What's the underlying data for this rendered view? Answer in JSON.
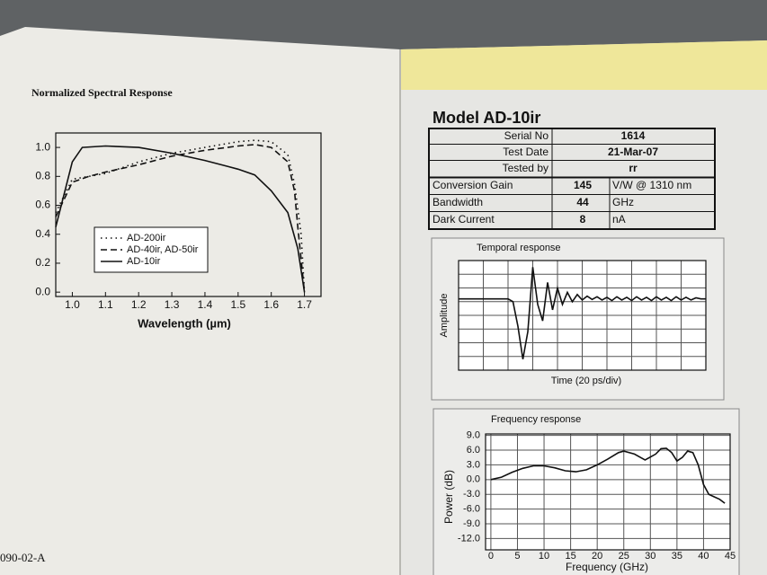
{
  "left_page": {
    "title": "Normalized Spectral Response",
    "footer": "090-02-A",
    "chart": {
      "type": "line",
      "x_label": "Wavelength (µm)",
      "xlim": [
        0.95,
        1.75
      ],
      "ylim": [
        -0.03,
        1.1
      ],
      "xticks": [
        {
          "value": 1.0,
          "label": "1.0"
        },
        1.1,
        1.2,
        1.3,
        1.4,
        1.5,
        1.6,
        1.7
      ],
      "yticks": [
        {
          "value": 0,
          "label": "0.0"
        },
        0.2,
        0.4,
        0.6,
        0.8,
        {
          "value": 1.0,
          "label": "1.0"
        }
      ],
      "series": [
        {
          "name": "AD-200ir",
          "color": "#111111",
          "style": "dotted",
          "x": [
            0.95,
            1.0,
            1.05,
            1.1,
            1.2,
            1.3,
            1.4,
            1.5,
            1.55,
            1.6,
            1.65,
            1.67,
            1.69,
            1.7
          ],
          "values": [
            0.55,
            0.78,
            0.8,
            0.82,
            0.9,
            0.96,
            1.0,
            1.04,
            1.05,
            1.04,
            0.95,
            0.75,
            0.4,
            0.0
          ]
        },
        {
          "name": "AD-40ir, AD-50ir",
          "color": "#111111",
          "style": "dashed",
          "x": [
            0.95,
            1.0,
            1.05,
            1.1,
            1.2,
            1.3,
            1.4,
            1.5,
            1.55,
            1.6,
            1.65,
            1.67,
            1.68,
            1.7
          ],
          "values": [
            0.52,
            0.76,
            0.8,
            0.83,
            0.88,
            0.94,
            0.98,
            1.01,
            1.02,
            1.0,
            0.9,
            0.7,
            0.45,
            0.0
          ]
        },
        {
          "name": "AD-10ir",
          "color": "#111111",
          "style": "solid",
          "x": [
            0.95,
            1.0,
            1.03,
            1.1,
            1.2,
            1.3,
            1.4,
            1.5,
            1.55,
            1.6,
            1.65,
            1.68,
            1.7
          ],
          "values": [
            0.45,
            0.9,
            1.0,
            1.01,
            1.0,
            0.96,
            0.91,
            0.85,
            0.81,
            0.7,
            0.55,
            0.3,
            0.0
          ]
        }
      ]
    }
  },
  "right_page": {
    "title": "Model AD-10ir",
    "table": {
      "rows": [
        [
          "Serial No",
          1614
        ],
        [
          "Test Date",
          "21-Mar-07"
        ],
        [
          "Tested by",
          "rr"
        ],
        [
          "Conversion Gain",
          145,
          "V/W @ 1310 nm"
        ],
        [
          "Bandwidth",
          44,
          "GHz"
        ],
        [
          "Dark Current",
          8,
          "nA"
        ]
      ]
    },
    "temporal": {
      "type": "line",
      "title": "Temporal response",
      "x_label": "Time (20 ps/div)",
      "y_label": "Amplitude",
      "ylim": [
        -1,
        1
      ],
      "series": [
        {
          "color": "#111111",
          "values": [
            0.3,
            0.3,
            0.3,
            0.3,
            0.3,
            0.3,
            0.3,
            0.3,
            0.3,
            0.3,
            0.3,
            0.25,
            -0.2,
            -0.8,
            -0.3,
            0.88,
            0.2,
            -0.1,
            0.6,
            0.1,
            0.5,
            0.2,
            0.42,
            0.25,
            0.38,
            0.28,
            0.35,
            0.29,
            0.34,
            0.28,
            0.33,
            0.27,
            0.34,
            0.28,
            0.33,
            0.27,
            0.34,
            0.28,
            0.33,
            0.27,
            0.34,
            0.28,
            0.33,
            0.27,
            0.34,
            0.28,
            0.33,
            0.28,
            0.32,
            0.3,
            0.3
          ]
        }
      ]
    },
    "frequency": {
      "type": "line",
      "title": "Frequency response",
      "x_label": "Frequency (GHz)",
      "y_label": "Power (dB)",
      "xlim": [
        -1,
        45
      ],
      "ylim": [
        -14.3,
        9.3
      ],
      "xticks": [
        0,
        5,
        10,
        15,
        20,
        25,
        30,
        35,
        40,
        45
      ],
      "yticks": [
        {
          "value": 9,
          "label": "9.0"
        },
        {
          "value": 6,
          "label": "6.0"
        },
        {
          "value": 3,
          "label": "3.0"
        },
        {
          "value": 0,
          "label": "0.0"
        },
        {
          "value": -3,
          "label": "-3.0"
        },
        {
          "value": -6,
          "label": "-6.0"
        },
        {
          "value": -9,
          "label": "-9.0"
        },
        {
          "value": -12,
          "label": "-12.0"
        }
      ],
      "series": [
        {
          "color": "#111111",
          "x": [
            0,
            2,
            4,
            6,
            8,
            10,
            12,
            14,
            16,
            18,
            20,
            22,
            24,
            25,
            27,
            29,
            31,
            32,
            33,
            34,
            35,
            36,
            37,
            38,
            39,
            40,
            41,
            42,
            43,
            44
          ],
          "values": [
            0,
            0.5,
            1.5,
            2.3,
            2.8,
            2.8,
            2.4,
            1.8,
            1.6,
            2.0,
            3.0,
            4.2,
            5.5,
            5.8,
            5.2,
            4.0,
            5.2,
            6.3,
            6.4,
            5.5,
            3.8,
            4.5,
            5.8,
            5.5,
            3.0,
            -1.0,
            -3.0,
            -3.5,
            -4.0,
            -4.8
          ]
        }
      ]
    }
  }
}
